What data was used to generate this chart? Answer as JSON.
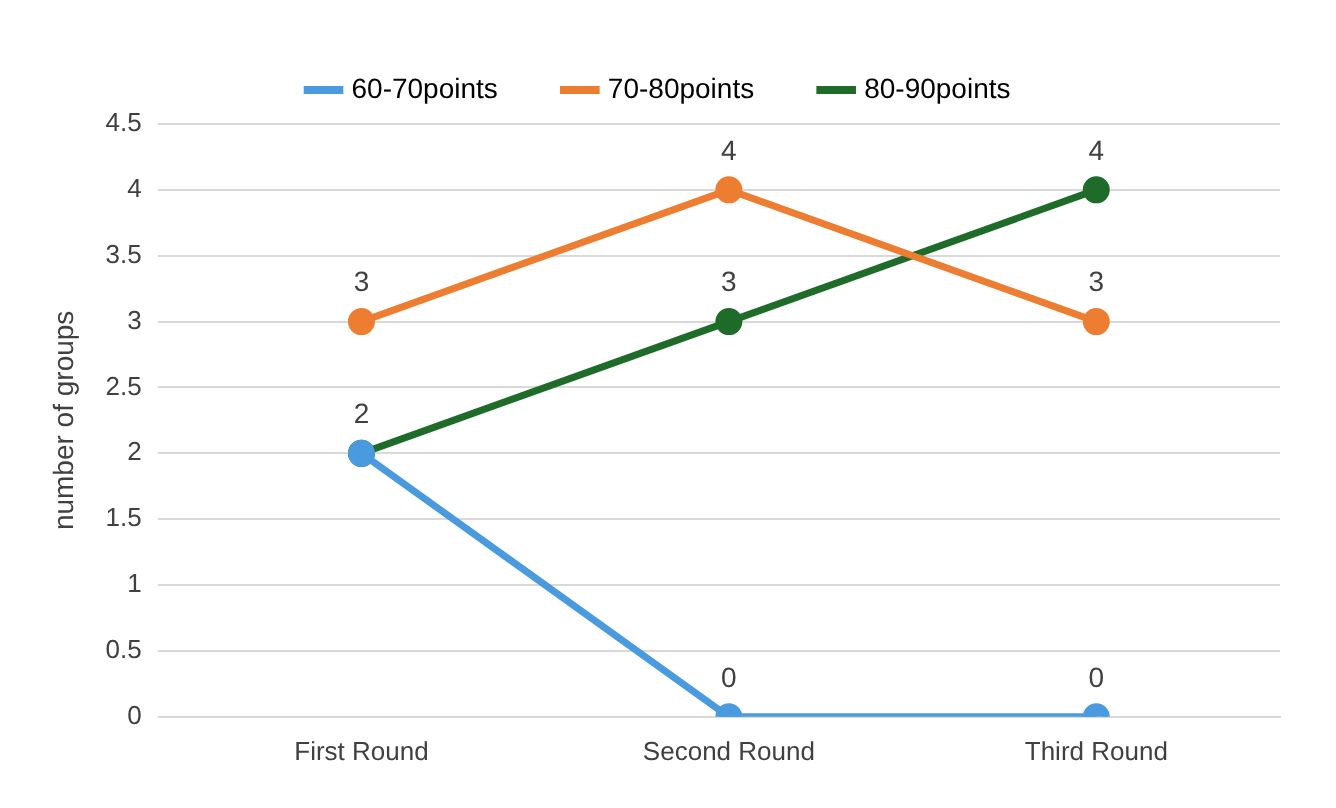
{
  "chart_data": {
    "type": "line",
    "ylabel": "number of groups",
    "categories": [
      "First Round",
      "Second Round",
      "Third Round"
    ],
    "series": [
      {
        "name": "60-70points",
        "color": "#4a9ae0",
        "values": [
          2,
          0,
          0
        ],
        "value_labels": [
          null,
          "0",
          "0"
        ]
      },
      {
        "name": "70-80points",
        "color": "#ed7d31",
        "values": [
          3,
          4,
          3
        ],
        "value_labels": [
          "3",
          "4",
          "3"
        ]
      },
      {
        "name": "80-90points",
        "color": "#1e6b2a",
        "values": [
          2,
          3,
          4
        ],
        "value_labels": [
          "2",
          "3",
          "4"
        ]
      }
    ],
    "ylim": [
      0,
      4.5
    ],
    "yticks": [
      0,
      0.5,
      1,
      1.5,
      2,
      2.5,
      3,
      3.5,
      4,
      4.5
    ],
    "grid": "y",
    "legend": "top",
    "marker": "circle",
    "line_style": "solid"
  }
}
